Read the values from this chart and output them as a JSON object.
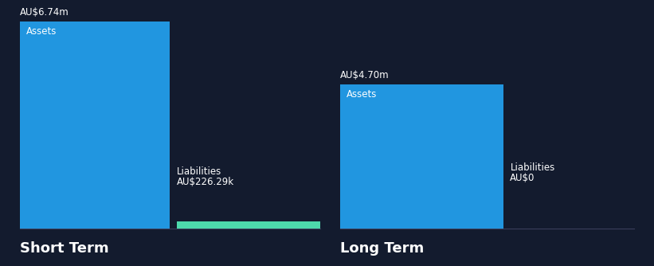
{
  "background_color": "#131b2e",
  "text_color": "#ffffff",
  "assets_color": "#2196e0",
  "liabilities_color_short": "#4dd9ac",
  "liabilities_color_long": "#2196e0",
  "baseline_color": "#3a3f5c",
  "short_term": {
    "label": "Short Term",
    "asset_value": 6.74,
    "asset_label": "AU$6.74m",
    "asset_text": "Assets",
    "liab_value": 0.22629,
    "liab_label": "AU$226.29k",
    "liab_text": "Liabilities"
  },
  "long_term": {
    "label": "Long Term",
    "asset_value": 4.7,
    "asset_label": "AU$4.70m",
    "asset_text": "Assets",
    "liab_value": 0.0,
    "liab_label": "AU$0",
    "liab_text": "Liabilities"
  },
  "y_max": 6.74,
  "group_label_fontsize": 13,
  "value_label_fontsize": 8.5,
  "bar_label_fontsize": 8.5
}
